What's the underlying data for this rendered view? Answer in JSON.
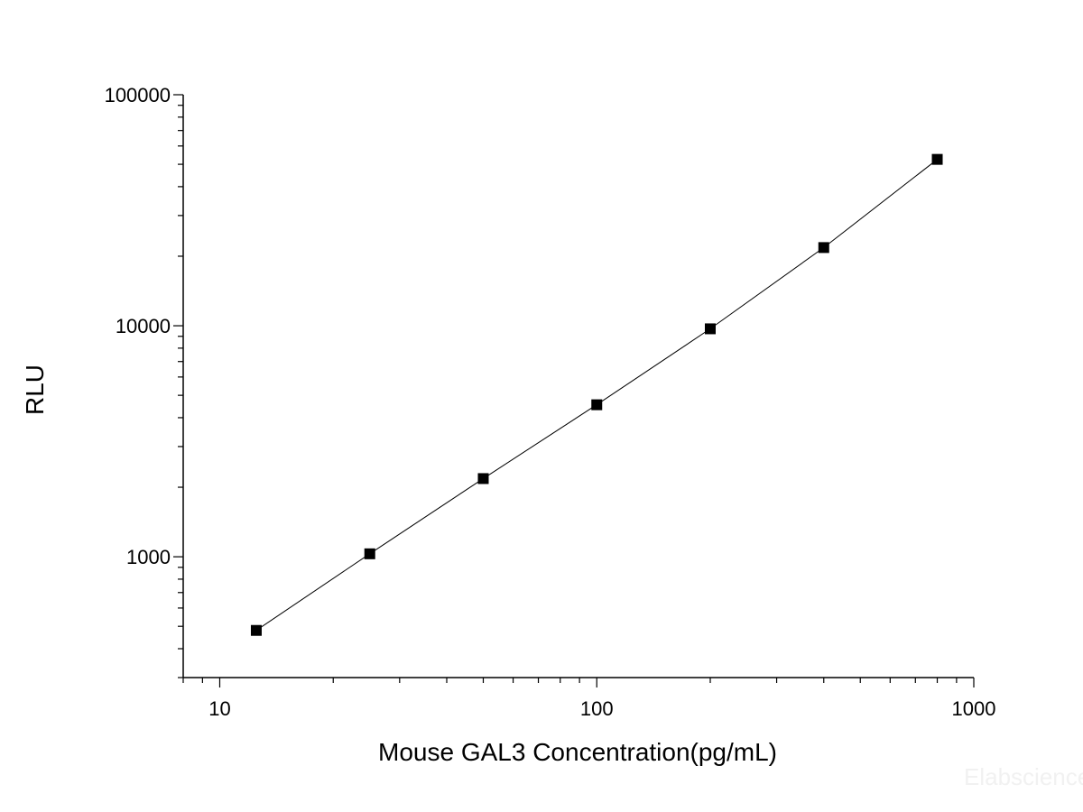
{
  "chart_data": {
    "type": "line",
    "title": "",
    "xlabel": "Mouse GAL3 Concentration(pg/mL)",
    "ylabel": "RLU",
    "xscale": "log",
    "yscale": "log",
    "xlim": [
      8,
      1000
    ],
    "ylim": [
      300,
      100000
    ],
    "x_ticks": [
      10,
      100,
      1000
    ],
    "x_tick_labels": [
      "10",
      "100",
      "1000"
    ],
    "y_ticks": [
      1000,
      10000,
      100000
    ],
    "y_tick_labels": [
      "1000",
      "10000",
      "100000"
    ],
    "grid": false,
    "legend": "none",
    "marker": "square",
    "series": [
      {
        "x": [
          12.5,
          25,
          50,
          100,
          200,
          400,
          800
        ],
        "y": [
          480,
          1030,
          2180,
          4550,
          9700,
          21800,
          52500
        ],
        "color": "#000000"
      }
    ]
  },
  "watermark": "Elabscience"
}
